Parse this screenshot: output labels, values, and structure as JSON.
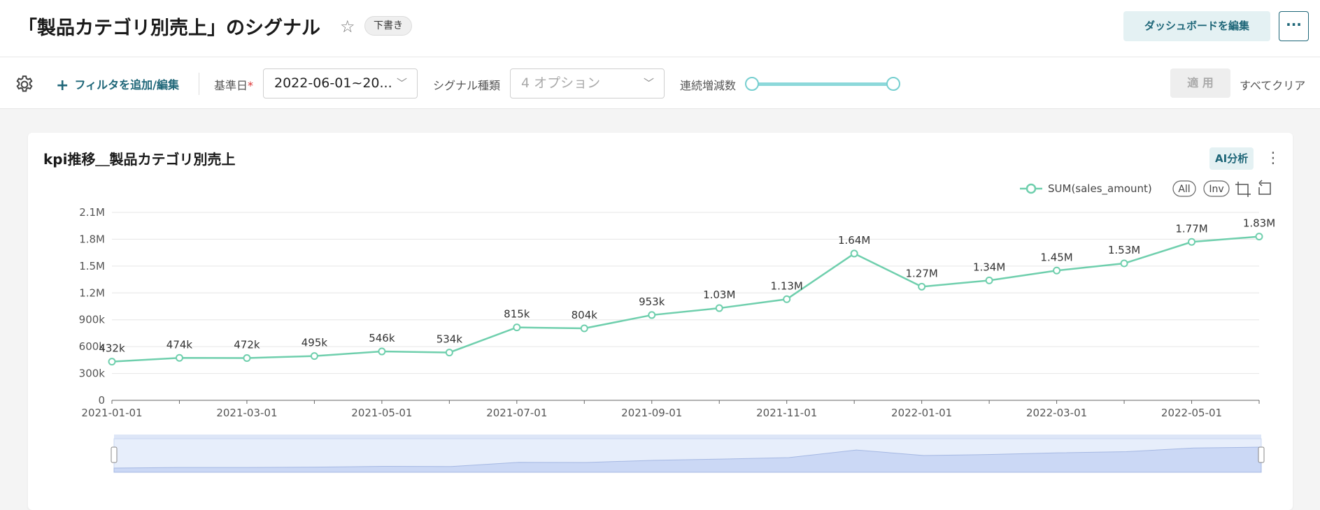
{
  "header": {
    "title": "「製品カテゴリ別売上」のシグナル",
    "draft_badge": "下書き",
    "edit_dashboard": "ダッシュボードを編集",
    "more": "···"
  },
  "filters": {
    "add_filter": "フィルタを追加/編集",
    "base_date_label": "基準日",
    "base_date_required": "*",
    "base_date_value": "2022-06-01~20...",
    "signal_type_label": "シグナル種類",
    "signal_type_placeholder": "4 オプション",
    "consecutive_label": "連続増減数",
    "apply": "適 用",
    "clear_all": "すべてクリア"
  },
  "card": {
    "title": "kpi推移＿製品カテゴリ別売上",
    "ai_button": "AI分析"
  },
  "chart_data": {
    "type": "line",
    "series_color": "#6fcfad",
    "x": [
      "2021-01-01",
      "2021-02-01",
      "2021-03-01",
      "2021-04-01",
      "2021-05-01",
      "2021-06-01",
      "2021-07-01",
      "2021-08-01",
      "2021-09-01",
      "2021-10-01",
      "2021-11-01",
      "2021-12-01",
      "2022-01-01",
      "2022-02-01",
      "2022-03-01",
      "2022-04-01",
      "2022-05-01",
      "2022-06-01"
    ],
    "x_tick_labels": [
      "2021-01-01",
      "2021-03-01",
      "2021-05-01",
      "2021-07-01",
      "2021-09-01",
      "2021-11-01",
      "2022-01-01",
      "2022-03-01",
      "2022-05-01"
    ],
    "series": [
      {
        "name": "SUM(sales_amount)",
        "values": [
          432000,
          474000,
          472000,
          495000,
          546000,
          534000,
          815000,
          804000,
          953000,
          1030000,
          1130000,
          1640000,
          1270000,
          1340000,
          1450000,
          1530000,
          1770000,
          1830000
        ],
        "labels": [
          "432k",
          "474k",
          "472k",
          "495k",
          "546k",
          "534k",
          "815k",
          "804k",
          "953k",
          "1.03M",
          "1.13M",
          "1.64M",
          "1.27M",
          "1.34M",
          "1.45M",
          "1.53M",
          "1.77M",
          "1.83M"
        ]
      }
    ],
    "y_ticks": [
      0,
      300000,
      600000,
      900000,
      1200000,
      1500000,
      1800000,
      2100000
    ],
    "y_tick_labels": [
      "0",
      "300k",
      "600k",
      "900k",
      "1.2M",
      "1.5M",
      "1.8M",
      "2.1M"
    ],
    "ylim": [
      0,
      2100000
    ],
    "legend_position": "top-right",
    "toolbox": [
      "All",
      "Inv"
    ],
    "grid": true
  }
}
